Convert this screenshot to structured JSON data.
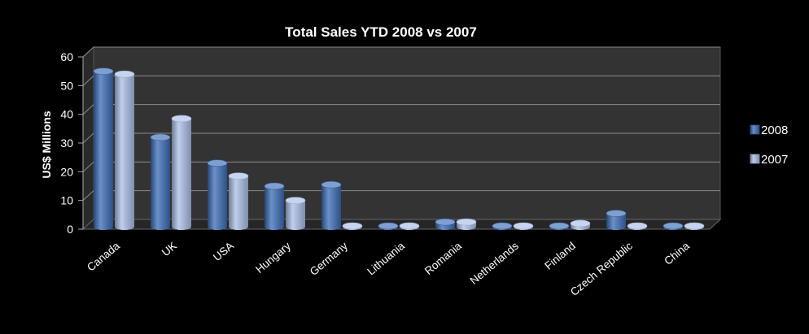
{
  "chart_data": {
    "type": "bar",
    "title": "Total Sales YTD 2008 vs 2007",
    "xlabel": "",
    "ylabel": "US$ Millions",
    "ylim": [
      0,
      60
    ],
    "yticks": [
      0,
      10,
      20,
      30,
      40,
      50,
      60
    ],
    "categories": [
      "Canada",
      "UK",
      "USA",
      "Hungary",
      "Germany",
      "Lithuania",
      "Romania",
      "Netherlands",
      "Finland",
      "Czech Republic",
      "China"
    ],
    "series": [
      {
        "name": "2008",
        "values": [
          55,
          32,
          23,
          15,
          15.5,
          0.5,
          2.5,
          1,
          1,
          5.5,
          0.5
        ],
        "color": "#3a6bb5"
      },
      {
        "name": "2007",
        "values": [
          54,
          38.5,
          18.5,
          10,
          0.8,
          1,
          2.5,
          1,
          2,
          0.3,
          0.8
        ],
        "color": "#a9bde6"
      }
    ],
    "grid": true,
    "legend_position": "right",
    "background": "#000000",
    "plot_background": "#333333"
  }
}
